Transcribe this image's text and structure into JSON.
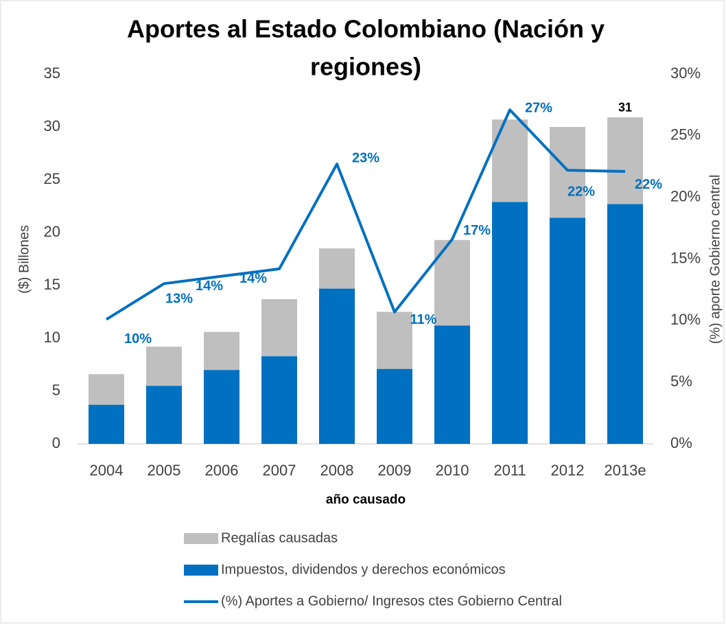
{
  "chart_data": {
    "type": "bar-line",
    "title_lines": [
      "Aportes al Estado Colombiano (Nación y",
      "regiones)"
    ],
    "x_label": "año causado",
    "y_label": "($) Billones",
    "y2_label": "(%) aporte Gobierno central",
    "categories": [
      "2004",
      "2005",
      "2006",
      "2007",
      "2008",
      "2009",
      "2010",
      "2011",
      "2012",
      "2013e"
    ],
    "ylim": [
      0,
      35
    ],
    "yticks": [
      0,
      5,
      10,
      15,
      20,
      25,
      30,
      35
    ],
    "y2lim": [
      0,
      30
    ],
    "y2ticks": [
      {
        "value": 0,
        "label": "0%"
      },
      {
        "value": 5,
        "label": "5%"
      },
      {
        "value": 10,
        "label": "10%"
      },
      {
        "value": 15,
        "label": "15%"
      },
      {
        "value": 20,
        "label": "20%"
      },
      {
        "value": 25,
        "label": "25%"
      },
      {
        "value": 30,
        "label": "30%"
      }
    ],
    "series": [
      {
        "name": "Impuestos, dividendos y derechos económicos",
        "type": "bar",
        "color": "#0070c0",
        "values": [
          3.7,
          5.5,
          7.0,
          8.3,
          14.7,
          7.1,
          11.2,
          22.9,
          21.4,
          22.7
        ]
      },
      {
        "name": "Regalías causadas",
        "type": "bar",
        "color": "#bfbfbf",
        "values": [
          2.9,
          3.7,
          3.6,
          5.4,
          3.8,
          5.4,
          8.1,
          7.8,
          8.6,
          8.2
        ]
      },
      {
        "name": "(%) Aportes a Gobierno/ Ingresos ctes Gobierno Central",
        "type": "line",
        "axis": "y2",
        "color": "#0070c0",
        "values": [
          10.1,
          13.0,
          13.6,
          14.2,
          22.7,
          10.7,
          16.6,
          27.1,
          22.2,
          22.1
        ],
        "value_labels": [
          "10%",
          "13%",
          "14%",
          "14%",
          "23%",
          "11%",
          "17%",
          "27%",
          "22%",
          "22%"
        ]
      }
    ],
    "total_label": {
      "category": "2013e",
      "value": 31
    }
  }
}
